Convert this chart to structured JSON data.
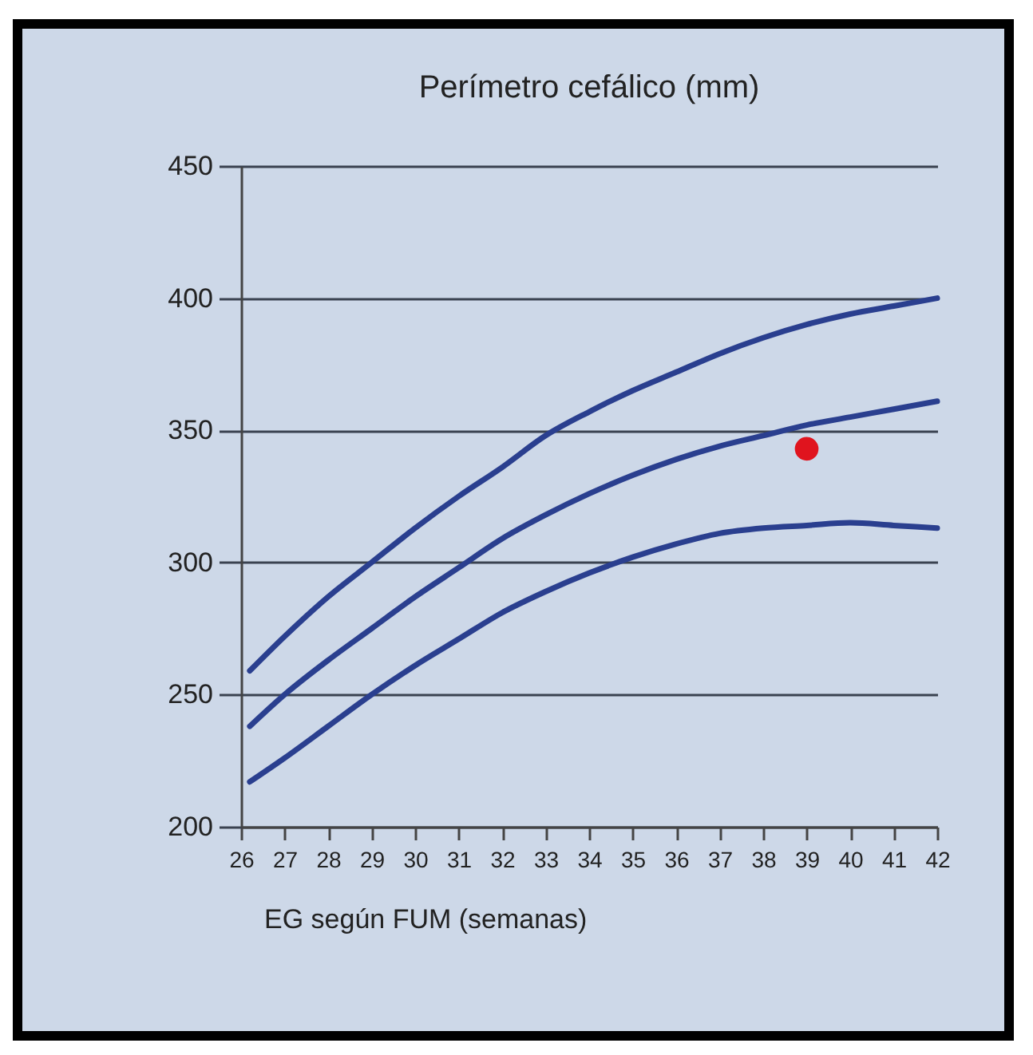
{
  "chart_data": {
    "type": "line",
    "title": "Perímetro cefálico (mm)",
    "xlabel": "EG según FUM (semanas)",
    "xlim": [
      26,
      42
    ],
    "xticks": [
      26,
      27,
      28,
      29,
      30,
      31,
      32,
      33,
      34,
      35,
      36,
      37,
      38,
      39,
      40,
      41,
      42
    ],
    "ylim": [
      200,
      450
    ],
    "yticks": [
      200,
      250,
      300,
      350,
      400,
      450
    ],
    "grid": "y",
    "marker": "none",
    "line_style": "solid",
    "series": [
      {
        "color": "#2a3f8f",
        "x": [
          26.2,
          27,
          28,
          29,
          30,
          31,
          32,
          33,
          34,
          35,
          36,
          37,
          38,
          39,
          40,
          41,
          42
        ],
        "values": [
          259,
          272,
          287,
          300,
          313,
          325,
          336,
          348,
          357,
          365,
          372,
          379,
          385,
          390,
          394,
          397,
          400
        ]
      },
      {
        "color": "#2a3f8f",
        "x": [
          26.2,
          27,
          28,
          29,
          30,
          31,
          32,
          33,
          34,
          35,
          36,
          37,
          38,
          39,
          40,
          41,
          42
        ],
        "values": [
          238,
          250,
          263,
          275,
          287,
          298,
          309,
          318,
          326,
          333,
          339,
          344,
          348,
          352,
          355,
          358,
          361
        ]
      },
      {
        "color": "#2a3f8f",
        "x": [
          26.2,
          27,
          28,
          29,
          30,
          31,
          32,
          33,
          34,
          35,
          36,
          37,
          38,
          39,
          40,
          41,
          42
        ],
        "values": [
          217,
          226,
          238,
          250,
          261,
          271,
          281,
          289,
          296,
          302,
          307,
          311,
          313,
          314,
          315,
          314,
          313
        ]
      },
      {
        "type": "scatter",
        "marker": "circle",
        "color": "#e0141e",
        "x": [
          39
        ],
        "values": [
          343
        ]
      }
    ]
  }
}
